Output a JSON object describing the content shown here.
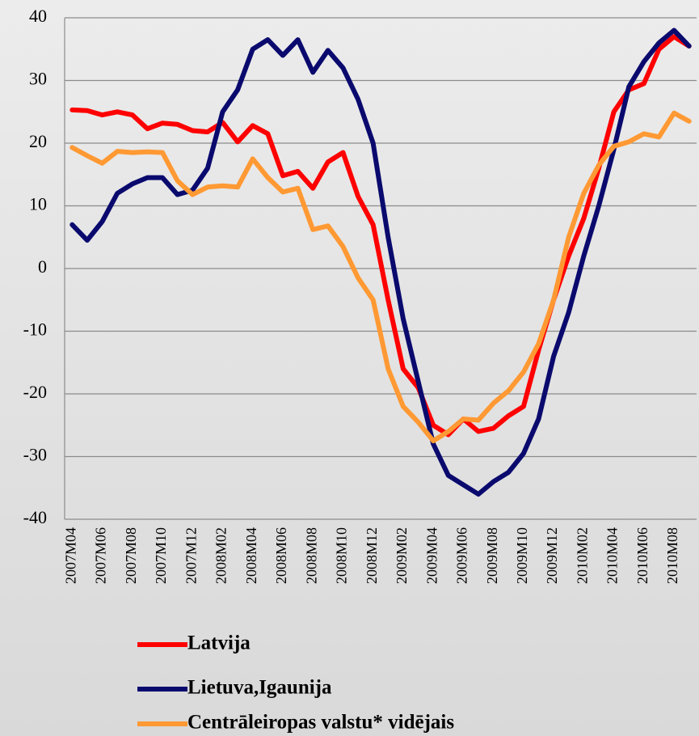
{
  "chart_data": {
    "type": "line",
    "categories": [
      "2007M04",
      null,
      "2007M06",
      null,
      "2007M08",
      null,
      "2007M10",
      null,
      "2007M12",
      null,
      "2008M02",
      null,
      "2008M04",
      null,
      "2008M06",
      null,
      "2008M08",
      null,
      "2008M10",
      null,
      "2008M12",
      null,
      "2009M02",
      null,
      "2009M04",
      null,
      "2009M06",
      null,
      "2009M08",
      null,
      "2009M10",
      null,
      "2009M12",
      null,
      "2010M02",
      null,
      "2010M04",
      null,
      "2010M06",
      null,
      "2010M08",
      null
    ],
    "series": [
      {
        "name": "Latvija",
        "color": "#ff0000",
        "values": [
          25.3,
          25.2,
          24.5,
          25,
          24.5,
          22.3,
          23.2,
          23,
          22,
          21.8,
          23.3,
          20.2,
          22.8,
          21.5,
          14.8,
          15.5,
          12.8,
          17,
          18.5,
          11.5,
          7,
          -5,
          -16,
          -19,
          -25,
          -26.5,
          -24,
          -26,
          -25.5,
          -23.5,
          -22,
          -13,
          -5,
          2,
          8,
          16,
          25,
          28.5,
          29.5,
          35,
          37,
          35.5
        ]
      },
      {
        "name": "Lietuva,Igaunija",
        "color": "#0a0a6e",
        "values": [
          7,
          4.5,
          7.5,
          12,
          13.5,
          14.5,
          14.5,
          11.8,
          12.5,
          16,
          25,
          28.5,
          35,
          36.5,
          34,
          36.5,
          31.3,
          34.8,
          32,
          27,
          20,
          5,
          -8,
          -18,
          -28,
          -33,
          -34.5,
          -36,
          -34,
          -32.5,
          -29.5,
          -24,
          -14,
          -7,
          2,
          10,
          19,
          29,
          33,
          36,
          38,
          35.5
        ]
      },
      {
        "name": "Centrāleiropas valstu* vidējais",
        "color": "#ff9933",
        "values": [
          19.3,
          18,
          16.8,
          18.7,
          18.5,
          18.6,
          18.5,
          14,
          11.8,
          13,
          13.2,
          13,
          17.5,
          14.5,
          12.2,
          12.8,
          6.2,
          6.8,
          3.5,
          -1.5,
          -5,
          -16,
          -22,
          -24.5,
          -27.5,
          -26,
          -24,
          -24.2,
          -21.5,
          -19.5,
          -16.5,
          -12,
          -5,
          5,
          12,
          16.5,
          19.5,
          20.2,
          21.5,
          21,
          24.8,
          23.5
        ]
      }
    ],
    "ylim": [
      -40,
      40
    ],
    "yticks": [
      -40,
      -30,
      -20,
      -10,
      0,
      10,
      20,
      30,
      40
    ],
    "grid": true
  }
}
